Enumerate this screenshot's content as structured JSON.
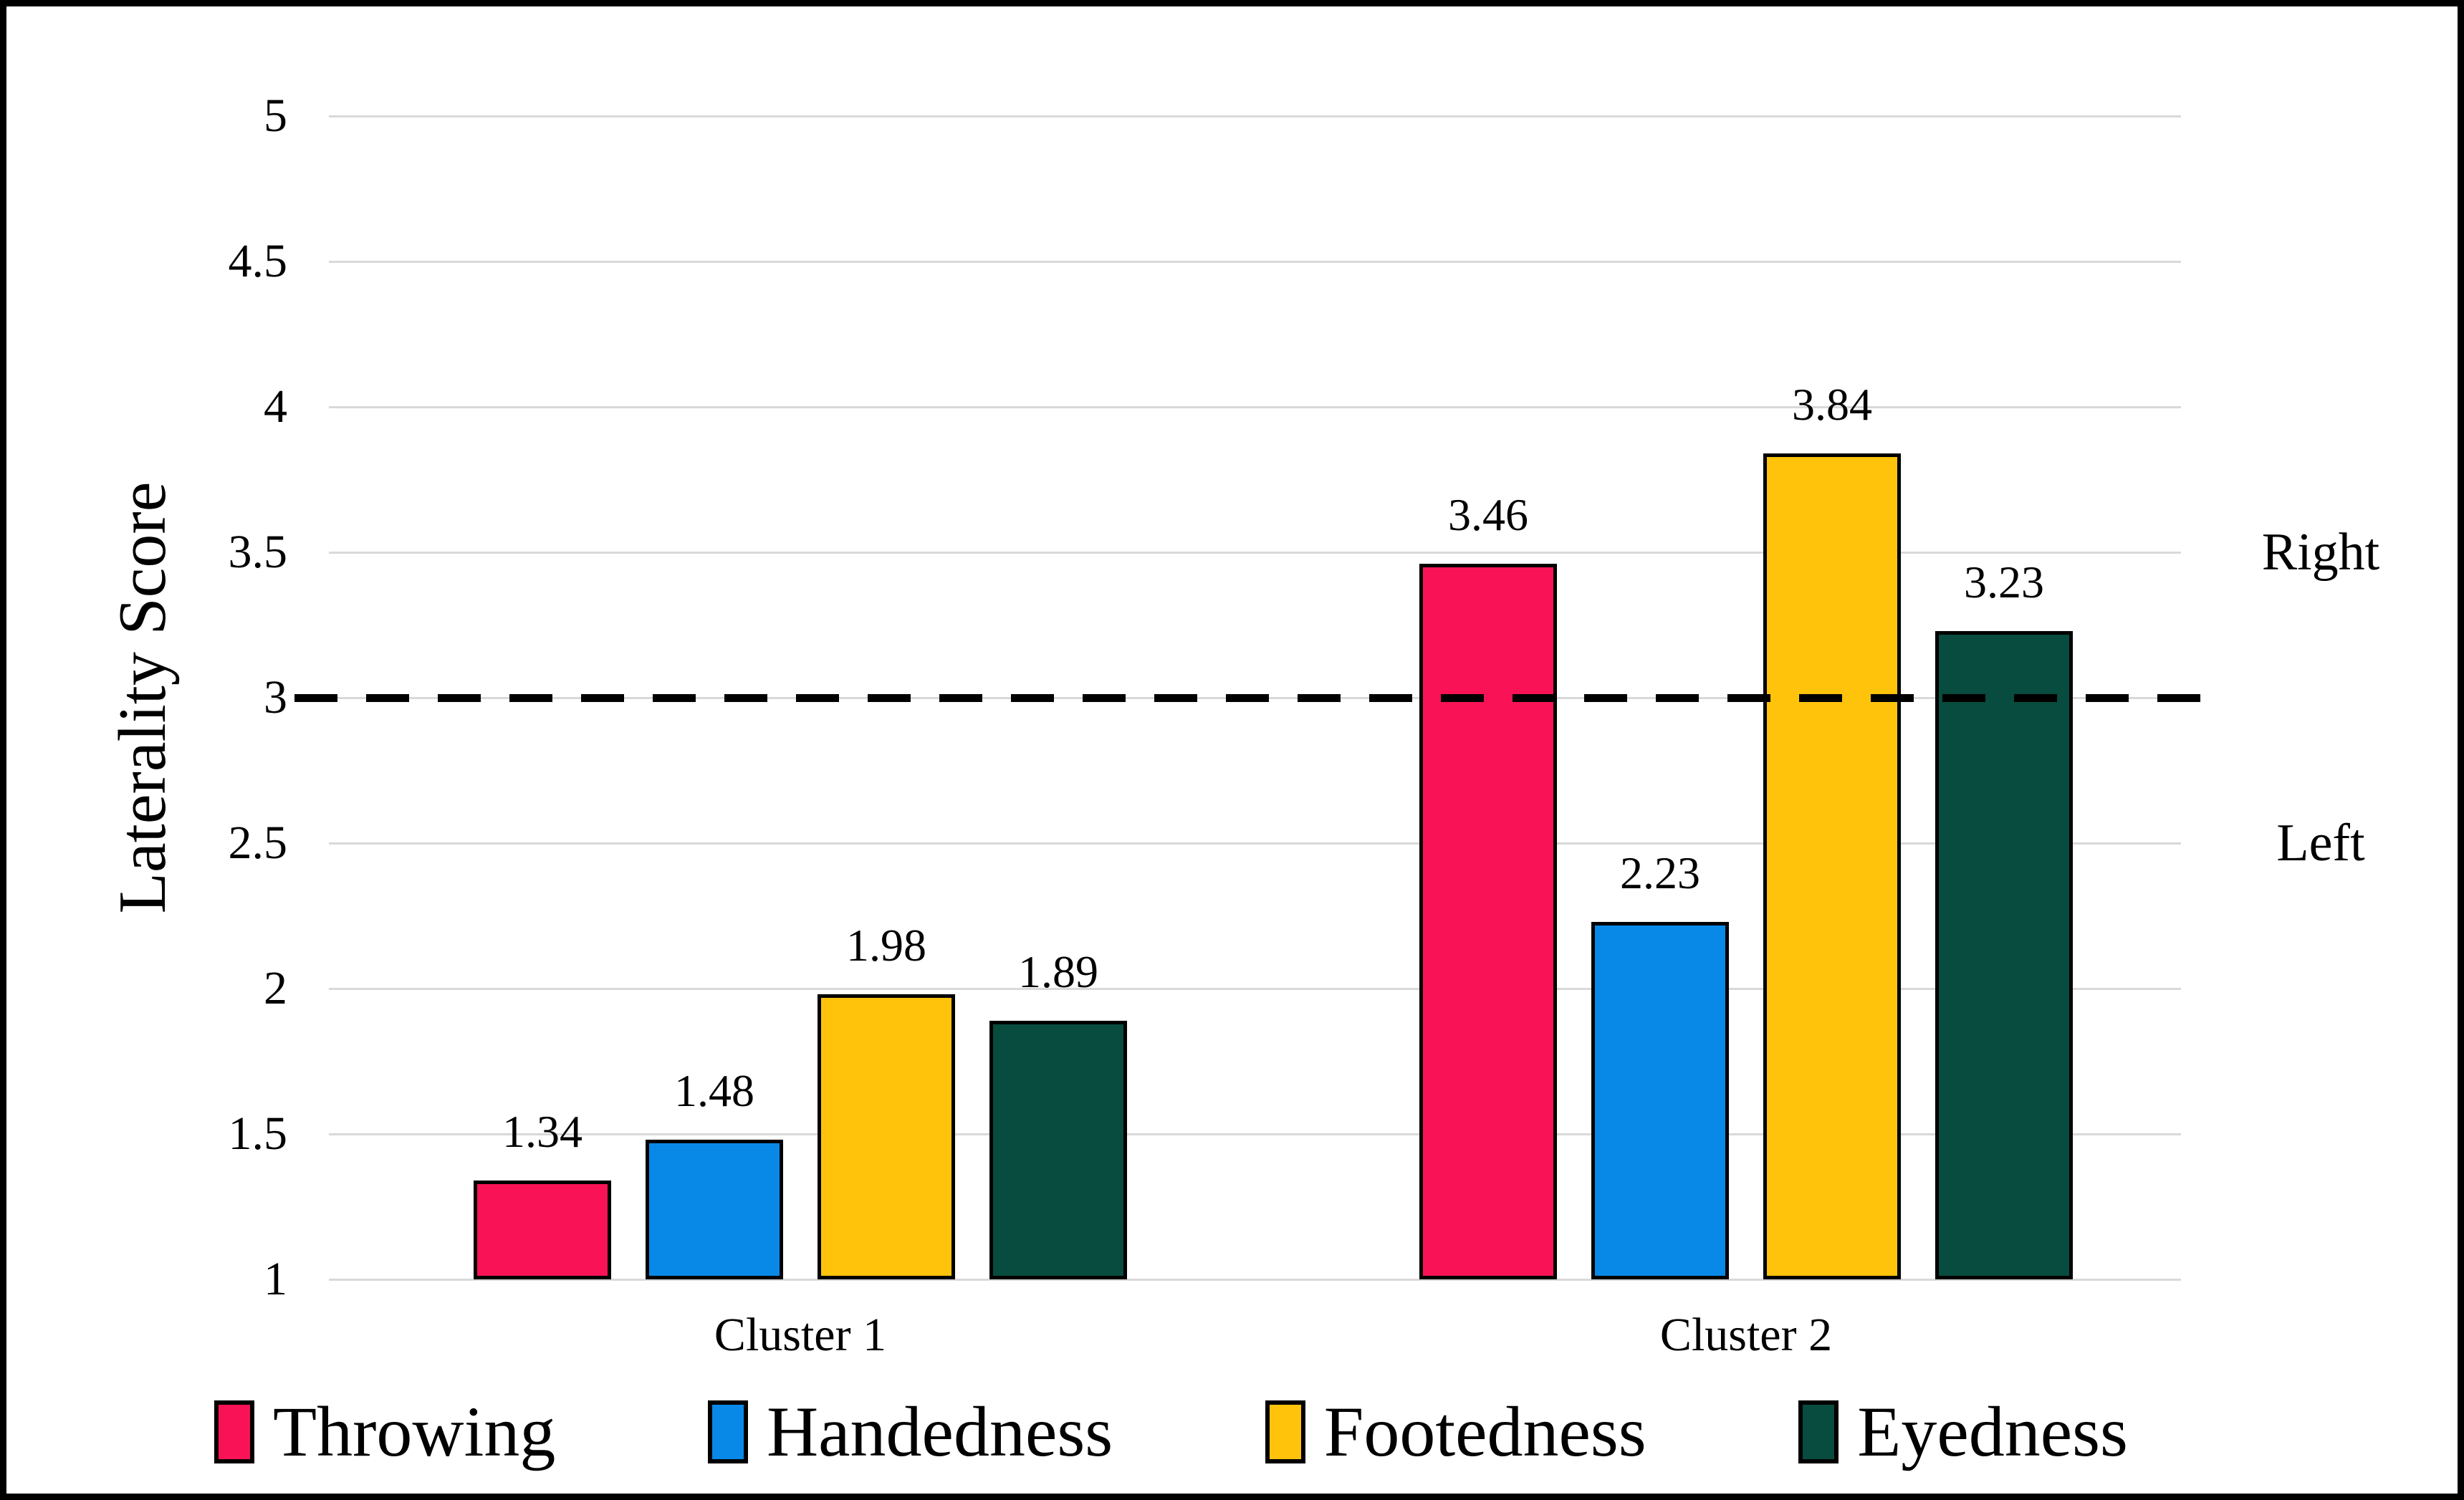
{
  "chart_data": {
    "type": "bar",
    "title": "",
    "ylabel": "Laterality Score",
    "xlabel": "",
    "categories": [
      "Cluster 1",
      "Cluster 2"
    ],
    "series": [
      {
        "name": "Throwing",
        "color": "#f91356",
        "values": [
          1.34,
          3.46
        ]
      },
      {
        "name": "Handedness",
        "color": "#0889e8",
        "values": [
          1.48,
          2.23
        ]
      },
      {
        "name": "Footedness",
        "color": "#ffc30b",
        "values": [
          1.98,
          3.84
        ]
      },
      {
        "name": "Eyedness",
        "color": "#074c3e",
        "values": [
          1.89,
          3.23
        ]
      }
    ],
    "ylim": [
      1,
      5
    ],
    "yticks": [
      5,
      4.5,
      4,
      3.5,
      3,
      2.5,
      2,
      1.5,
      1
    ],
    "grid": true,
    "gridline_color": "#d9d9d9",
    "data_labels": true,
    "legend_position": "bottom",
    "reference_line": {
      "y": 3,
      "style": "dashed",
      "color": "#000000"
    },
    "annotations": [
      {
        "text": "Right",
        "y": 3.5,
        "side": "right"
      },
      {
        "text": "Left",
        "y": 2.5,
        "side": "right"
      }
    ]
  }
}
